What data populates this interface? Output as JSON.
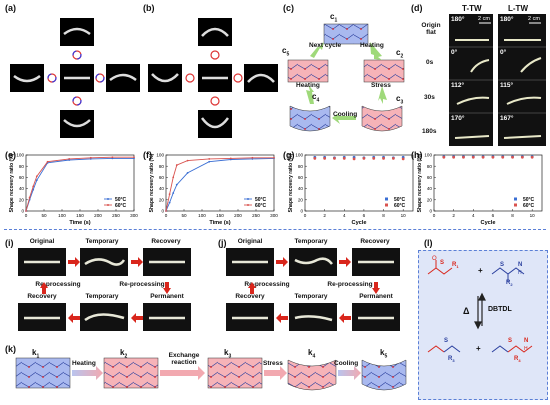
{
  "panels": {
    "a": "(a)",
    "b": "(b)",
    "c": "(c)",
    "d": "(d)",
    "e": "(e)",
    "f": "(f)",
    "g": "(g)",
    "h": "(h)",
    "i": "(i)",
    "j": "(j)",
    "k": "(k)",
    "l": "(l)"
  },
  "cycle": {
    "c1": "c",
    "c1s": "1",
    "c2": "c",
    "c2s": "2",
    "c3": "c",
    "c3s": "3",
    "c4": "c",
    "c4s": "4",
    "c5": "c",
    "c5s": "5",
    "heating1": "Heating",
    "stress": "Stress",
    "cooling": "Cooling",
    "heating2": "Heating",
    "next": "Next cycle"
  },
  "panel_d": {
    "col1": "T-TW",
    "col2": "L-TW",
    "scale": "2 cm",
    "rows": [
      "Origin flat",
      "0s",
      "30s",
      "180s"
    ],
    "angles_t": [
      "180°",
      "0°",
      "112°",
      "170°"
    ],
    "angles_l": [
      "180°",
      "0°",
      "115°",
      "167°"
    ]
  },
  "chart_data": [
    {
      "type": "line",
      "panel": "e",
      "xlabel": "Time (s)",
      "ylabel": "Shape recovery ratio (%)",
      "xlim": [
        0,
        300
      ],
      "ylim": [
        0,
        100
      ],
      "xticks": [
        0,
        50,
        100,
        150,
        200,
        250,
        300
      ],
      "yticks": [
        0,
        20,
        40,
        60,
        80,
        100
      ],
      "series": [
        {
          "name": "50°C",
          "color": "#3b6fd4",
          "x": [
            0,
            10,
            20,
            30,
            60,
            120,
            180,
            240,
            300
          ],
          "y": [
            0,
            20,
            38,
            55,
            86,
            91,
            93,
            94,
            94
          ]
        },
        {
          "name": "60°C",
          "color": "#d9534f",
          "x": [
            0,
            10,
            20,
            30,
            60,
            120,
            180,
            240,
            300
          ],
          "y": [
            0,
            24,
            44,
            62,
            88,
            93,
            95,
            96,
            96
          ]
        }
      ],
      "legend": "bottom-right"
    },
    {
      "type": "line",
      "panel": "f",
      "xlabel": "Time (s)",
      "ylabel": "Shape recovery ratio (%)",
      "xlim": [
        0,
        300
      ],
      "ylim": [
        0,
        100
      ],
      "xticks": [
        0,
        50,
        100,
        150,
        200,
        250,
        300
      ],
      "yticks": [
        0,
        20,
        40,
        60,
        80,
        100
      ],
      "series": [
        {
          "name": "50°C",
          "color": "#3b6fd4",
          "x": [
            0,
            10,
            20,
            30,
            60,
            120,
            180,
            240,
            300
          ],
          "y": [
            0,
            15,
            32,
            47,
            68,
            88,
            92,
            93,
            94
          ]
        },
        {
          "name": "60°C",
          "color": "#d9534f",
          "x": [
            0,
            10,
            20,
            30,
            60,
            120,
            180,
            240,
            300
          ],
          "y": [
            0,
            30,
            60,
            82,
            90,
            93,
            94,
            95,
            95
          ]
        }
      ],
      "legend": "bottom-right"
    },
    {
      "type": "scatter",
      "panel": "g",
      "xlabel": "Cycle",
      "ylabel": "Shape recovery ratio (%)",
      "xlim": [
        0,
        11
      ],
      "ylim": [
        0,
        100
      ],
      "xticks": [
        0,
        2,
        4,
        6,
        8,
        10
      ],
      "yticks": [
        0,
        20,
        40,
        60,
        80,
        100
      ],
      "series": [
        {
          "name": "50°C",
          "color": "#3b6fd4",
          "x": [
            1,
            2,
            3,
            4,
            5,
            6,
            7,
            8,
            9,
            10
          ],
          "y": [
            96,
            96,
            95,
            96,
            96,
            95,
            96,
            96,
            95,
            96
          ]
        },
        {
          "name": "60°C",
          "color": "#d9534f",
          "x": [
            1,
            2,
            3,
            4,
            5,
            6,
            7,
            8,
            9,
            10
          ],
          "y": [
            94,
            94,
            94,
            94,
            93,
            94,
            94,
            94,
            94,
            93
          ]
        }
      ],
      "legend": "bottom-right"
    },
    {
      "type": "scatter",
      "panel": "h",
      "xlabel": "Cycle",
      "ylabel": "Shape recovery ratio (%)",
      "xlim": [
        0,
        11
      ],
      "ylim": [
        0,
        100
      ],
      "xticks": [
        0,
        2,
        4,
        6,
        8,
        10
      ],
      "yticks": [
        0,
        20,
        40,
        60,
        80,
        100
      ],
      "series": [
        {
          "name": "50°C",
          "color": "#3b6fd4",
          "x": [
            1,
            2,
            3,
            4,
            5,
            6,
            7,
            8,
            9,
            10
          ],
          "y": [
            97,
            97,
            97,
            97,
            97,
            97,
            97,
            97,
            97,
            97
          ]
        },
        {
          "name": "60°C",
          "color": "#d9534f",
          "x": [
            1,
            2,
            3,
            4,
            5,
            6,
            7,
            8,
            9,
            10
          ],
          "y": [
            96,
            96,
            96,
            96,
            96,
            96,
            96,
            96,
            96,
            96
          ]
        }
      ],
      "legend": "bottom-right"
    }
  ],
  "panel_i": {
    "original": "Original",
    "temporary": "Temporary",
    "recovery": "Recovery",
    "reprocessing_left": "Re-processing",
    "reprocessing_right": "Re-processing",
    "recovery2": "Recovery",
    "temporary2": "Temporary",
    "permanent": "Permanent"
  },
  "panel_j": {
    "original": "Original",
    "temporary": "Temporary",
    "recovery": "Recovery",
    "reprocessing_left": "Re-processing",
    "reprocessing_right": "Re-processing",
    "recovery2": "Recovery",
    "temporary2": "Temporary",
    "permanent": "Permanent"
  },
  "panel_k": {
    "k1": "k",
    "k1s": "1",
    "k2": "k",
    "k2s": "2",
    "k3": "k",
    "k3s": "3",
    "k4": "k",
    "k4s": "4",
    "k5": "k",
    "k5s": "5",
    "heating": "Heating",
    "exchange": "Exchange reaction",
    "stress": "Stress",
    "cooling": "Cooling"
  },
  "panel_l": {
    "catalyst": "DBTDL",
    "triangle": "Δ",
    "r1": "R",
    "r1s": "1",
    "r2": "R",
    "r2s": "2",
    "r3": "R",
    "r3s": "3",
    "r4": "R",
    "r4s": "4",
    "s": "S",
    "n": "N",
    "h": "H",
    "o": "O",
    "plus": "+"
  },
  "colors": {
    "blue_network": "#a9b9ef",
    "pink_network": "#f6b3b8",
    "arrow_green": "#9fd97a",
    "arrow_red": "#d9261c",
    "panel_l_bg": "#dfe6f8",
    "sep": "#5a7fd6"
  }
}
